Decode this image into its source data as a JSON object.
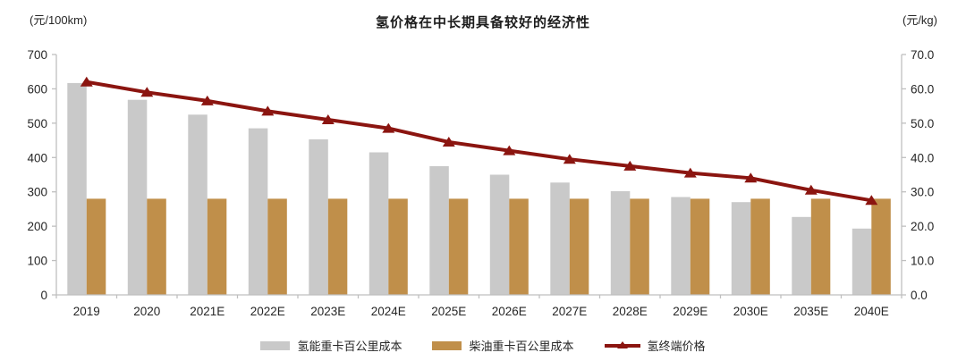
{
  "title": "氢价格在中长期具备较好的经济性",
  "left_axis_unit": "(元/100km)",
  "right_axis_unit": "(元/kg)",
  "colors": {
    "h2_truck_bar": "#C9C9C9",
    "diesel_truck_bar": "#C08F4A",
    "h2_price_line": "#8B1510",
    "axis": "#BFBFBF",
    "text": "#262626"
  },
  "chart_data": {
    "type": "bar",
    "subtype": "grouped-bars-with-line",
    "title": "氢价格在中长期具备较好的经济性",
    "categories": [
      "2019",
      "2020",
      "2021E",
      "2022E",
      "2023E",
      "2024E",
      "2025E",
      "2026E",
      "2027E",
      "2028E",
      "2029E",
      "2030E",
      "2035E",
      "2040E"
    ],
    "series": [
      {
        "name": "氢能重卡百公里成本",
        "type": "bar",
        "axis": "left",
        "color": "#C9C9C9",
        "values": [
          617,
          568,
          525,
          485,
          453,
          415,
          375,
          350,
          327,
          302,
          285,
          270,
          227,
          193
        ]
      },
      {
        "name": "柴油重卡百公里成本",
        "type": "bar",
        "axis": "left",
        "color": "#C08F4A",
        "values": [
          280,
          280,
          280,
          280,
          280,
          280,
          280,
          280,
          280,
          280,
          280,
          280,
          280,
          280
        ]
      },
      {
        "name": "氢终端价格",
        "type": "line",
        "axis": "right",
        "color": "#8B1510",
        "marker": "triangle-up",
        "values": [
          62.0,
          59.0,
          56.5,
          53.5,
          51.0,
          48.5,
          44.5,
          42.0,
          39.5,
          37.5,
          35.5,
          34.0,
          30.5,
          27.5
        ]
      }
    ],
    "left_axis": {
      "label": "(元/100km)",
      "min": 0,
      "max": 700,
      "step": 100,
      "ticks": [
        "0",
        "100",
        "200",
        "300",
        "400",
        "500",
        "600",
        "700"
      ]
    },
    "right_axis": {
      "label": "(元/kg)",
      "min": 0,
      "max": 70,
      "step": 10,
      "ticks": [
        "0.0",
        "10.0",
        "20.0",
        "30.0",
        "40.0",
        "50.0",
        "60.0",
        "70.0"
      ]
    },
    "grid": false,
    "legend_position": "bottom"
  },
  "legend": {
    "item1": "氢能重卡百公里成本",
    "item2": "柴油重卡百公里成本",
    "item3": "氢终端价格"
  }
}
